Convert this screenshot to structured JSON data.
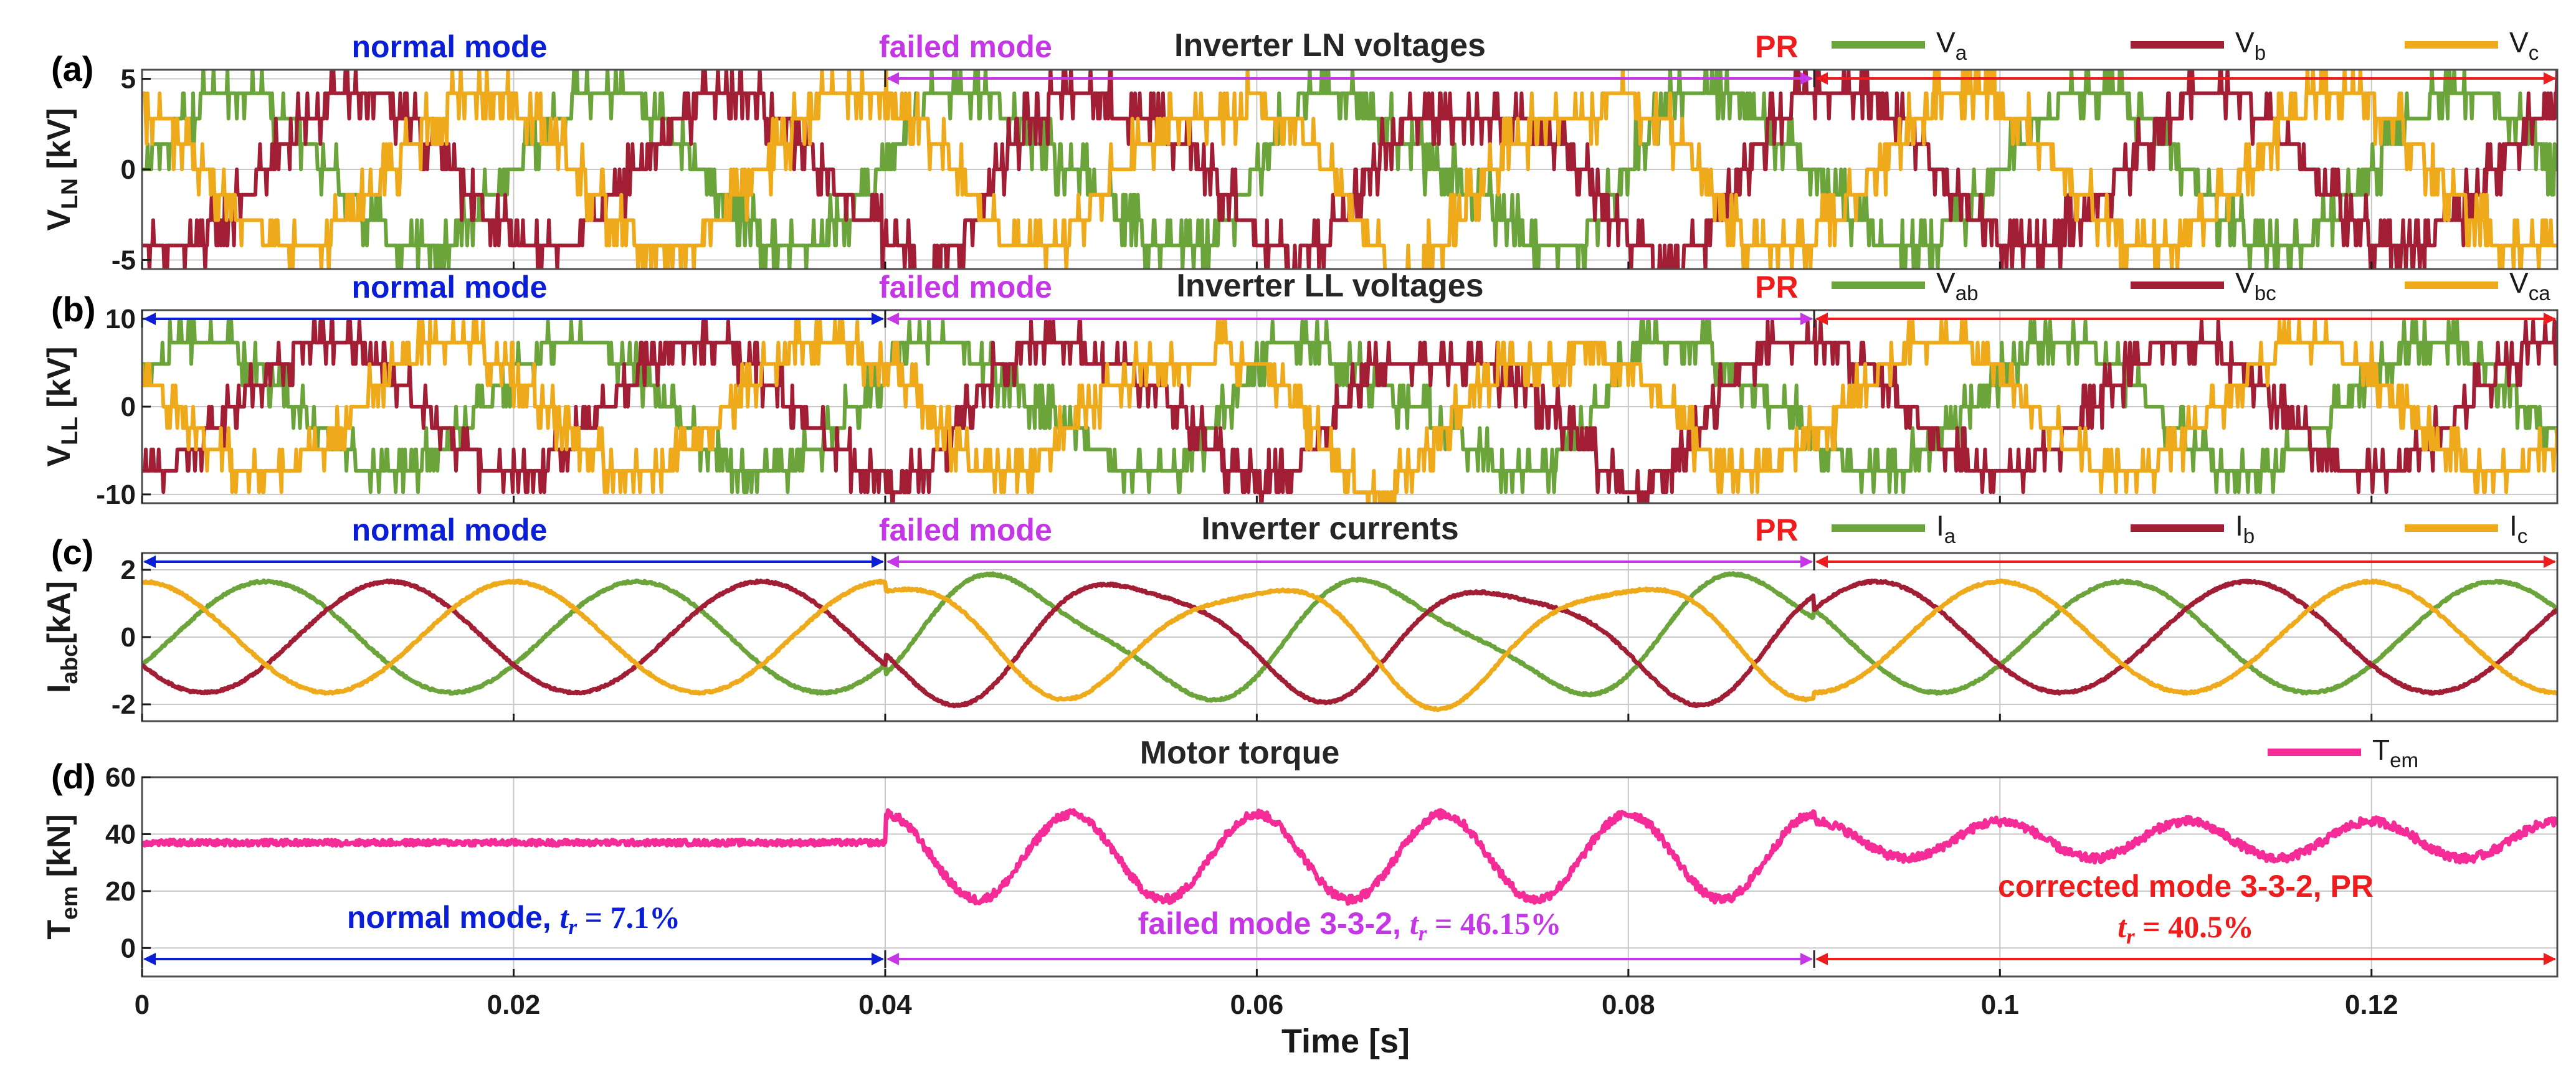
{
  "chart_data": [
    {
      "type": "line",
      "panel_label": "(a)",
      "title": "Inverter LN voltages",
      "ylabel_main": "V",
      "ylabel_sub": "LN",
      "ylabel_unit": " [kV]",
      "xlim": [
        0,
        0.13
      ],
      "ylim": [
        -5.5,
        5.5
      ],
      "yticks": [
        "5",
        "0",
        "-5"
      ],
      "ytick_values": [
        5,
        0,
        -5
      ],
      "fundamental_hz": 50,
      "shape": "stepped-multilevel",
      "series": [
        {
          "name": "Va",
          "label_main": "V",
          "label_sub": "a",
          "color": "#6aa43a",
          "amplitude": 4.2,
          "phase_deg": 0
        },
        {
          "name": "Vb",
          "label_main": "V",
          "label_sub": "b",
          "color": "#a21e35",
          "amplitude": 4.2,
          "phase_deg": -120
        },
        {
          "name": "Vc",
          "label_main": "V",
          "label_sub": "c",
          "color": "#eeaa1a",
          "amplitude": 4.2,
          "phase_deg": 120
        }
      ],
      "mode_labels": [
        {
          "text": "normal mode",
          "color": "#0a1ed8",
          "x": 0.02
        },
        {
          "text": "failed mode",
          "color": "#c436e6",
          "x": 0.04
        },
        {
          "text": "PR",
          "color": "#ee1c1c",
          "x": 0.0895
        }
      ],
      "mode_arrows": [
        {
          "from": 0.04,
          "to": 0.09,
          "color": "#c436e6"
        },
        {
          "from": 0.09,
          "to": 0.13,
          "color": "#ee1c1c"
        }
      ]
    },
    {
      "type": "line",
      "panel_label": "(b)",
      "title": "Inverter LL voltages",
      "ylabel_main": "V",
      "ylabel_sub": "LL",
      "ylabel_unit": " [kV]",
      "xlim": [
        0,
        0.13
      ],
      "ylim": [
        -11,
        11
      ],
      "yticks": [
        "10",
        "0",
        "-10"
      ],
      "ytick_values": [
        10,
        0,
        -10
      ],
      "fundamental_hz": 50,
      "shape": "stepped-multilevel",
      "series": [
        {
          "name": "Vab",
          "label_main": "V",
          "label_sub": "ab",
          "color": "#6aa43a",
          "amplitude": 7.3,
          "phase_deg": 30
        },
        {
          "name": "Vbc",
          "label_main": "V",
          "label_sub": "bc",
          "color": "#a21e35",
          "amplitude": 7.3,
          "phase_deg": -90
        },
        {
          "name": "Vca",
          "label_main": "V",
          "label_sub": "ca",
          "color": "#eeaa1a",
          "amplitude": 7.3,
          "phase_deg": 150
        }
      ],
      "mode_labels": [
        {
          "text": "normal mode",
          "color": "#0a1ed8",
          "x": 0.02
        },
        {
          "text": "failed mode",
          "color": "#c436e6",
          "x": 0.04
        },
        {
          "text": "PR",
          "color": "#ee1c1c",
          "x": 0.0895
        }
      ],
      "mode_arrows": [
        {
          "from": 0.0,
          "to": 0.04,
          "color": "#0a1ed8"
        },
        {
          "from": 0.04,
          "to": 0.09,
          "color": "#c436e6"
        },
        {
          "from": 0.09,
          "to": 0.13,
          "color": "#ee1c1c"
        }
      ]
    },
    {
      "type": "line",
      "panel_label": "(c)",
      "title": "Inverter currents",
      "ylabel_main": "I",
      "ylabel_sub": "abc",
      "ylabel_unit": "[kA]",
      "xlim": [
        0,
        0.13
      ],
      "ylim": [
        -2.5,
        2.5
      ],
      "yticks": [
        "2",
        "0",
        "-2"
      ],
      "ytick_values": [
        2,
        0,
        -2
      ],
      "fundamental_hz": 50,
      "shape": "sinusoidal",
      "series": [
        {
          "name": "Ia",
          "label_main": "I",
          "label_sub": "a",
          "color": "#6aa43a",
          "amplitude": 1.65,
          "phase_deg": -30
        },
        {
          "name": "Ib",
          "label_main": "I",
          "label_sub": "b",
          "color": "#a21e35",
          "amplitude": 1.65,
          "phase_deg": -150
        },
        {
          "name": "Ic",
          "label_main": "I",
          "label_sub": "c",
          "color": "#eeaa1a",
          "amplitude": 1.65,
          "phase_deg": 90
        }
      ],
      "mode_labels": [
        {
          "text": "normal mode",
          "color": "#0a1ed8",
          "x": 0.02
        },
        {
          "text": "failed mode",
          "color": "#c436e6",
          "x": 0.04
        },
        {
          "text": "PR",
          "color": "#ee1c1c",
          "x": 0.0895
        }
      ],
      "mode_arrows": [
        {
          "from": 0.0,
          "to": 0.04,
          "color": "#0a1ed8"
        },
        {
          "from": 0.04,
          "to": 0.09,
          "color": "#c436e6"
        },
        {
          "from": 0.09,
          "to": 0.13,
          "color": "#ee1c1c"
        }
      ]
    },
    {
      "type": "line",
      "panel_label": "(d)",
      "title": "Motor torque",
      "ylabel_main": "T",
      "ylabel_sub": "em",
      "ylabel_unit": " [kN]",
      "xlim": [
        0,
        0.13
      ],
      "ylim": [
        -10,
        60
      ],
      "yticks": [
        "60",
        "40",
        "20",
        "0"
      ],
      "ytick_values": [
        60,
        40,
        20,
        0
      ],
      "xlabel": "Time [s]",
      "xticks": [
        "0",
        "0.02",
        "0.04",
        "0.06",
        "0.08",
        "0.1",
        "0.12"
      ],
      "xtick_values": [
        0,
        0.02,
        0.04,
        0.06,
        0.08,
        0.1,
        0.12
      ],
      "series": [
        {
          "name": "Tem",
          "label_main": "T",
          "label_sub": "em",
          "color": "#f52c98",
          "segments": [
            {
              "from": 0.0,
              "to": 0.04,
              "mean": 37,
              "ripple": 1.0,
              "ripple_hz": 0
            },
            {
              "from": 0.04,
              "to": 0.09,
              "mean": 32,
              "ripple": 15,
              "ripple_hz": 100
            },
            {
              "from": 0.09,
              "to": 0.13,
              "mean": 38,
              "ripple": 6.5,
              "ripple_hz": 100
            }
          ]
        }
      ],
      "annotations": [
        {
          "text": "normal mode, ",
          "tr": "t",
          "tr_sub": "r",
          "value": " = 7.1%",
          "color": "#0a1ed8",
          "x": 0.02
        },
        {
          "text": "failed mode 3-3-2, ",
          "tr": "t",
          "tr_sub": "r",
          "value": " = 46.15%",
          "color": "#c436e6",
          "x": 0.065
        },
        {
          "text": "corrected mode 3-3-2, PR",
          "color": "#ee1c1c",
          "x": 0.11
        },
        {
          "text": "",
          "tr": "t",
          "tr_sub": "r",
          "value": " = 40.5%",
          "color": "#ee1c1c",
          "x": 0.11
        }
      ],
      "mode_arrows": [
        {
          "from": 0.0,
          "to": 0.04,
          "color": "#0a1ed8"
        },
        {
          "from": 0.04,
          "to": 0.09,
          "color": "#c436e6"
        },
        {
          "from": 0.09,
          "to": 0.13,
          "color": "#ee1c1c"
        }
      ]
    }
  ]
}
